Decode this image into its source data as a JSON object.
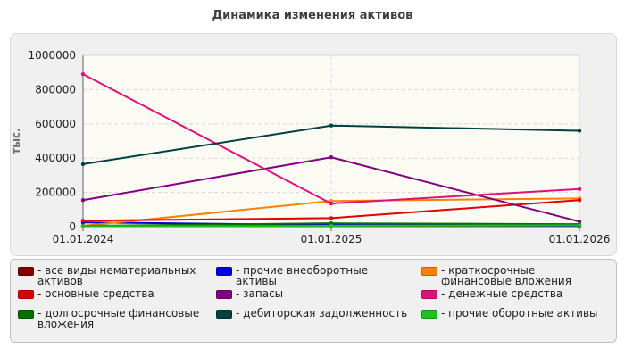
{
  "title": "Динамика изменения активов",
  "chart_data": {
    "type": "line",
    "title": "Динамика изменения активов",
    "ylabel": "тыс.",
    "xlabel": "",
    "x": [
      "01.01.2024",
      "01.01.2025",
      "01.01.2026"
    ],
    "ylim": [
      0,
      1000000
    ],
    "yticks": [
      "0",
      "200000",
      "400000",
      "600000",
      "800000",
      "1000000"
    ],
    "ytick_values": [
      0,
      200000,
      400000,
      600000,
      800000,
      1000000
    ],
    "grid": true,
    "legend_position": "bottom",
    "series": [
      {
        "name": "- все виды нематериальных активов",
        "color": "#800000",
        "values": [
          5000,
          5000,
          5000
        ]
      },
      {
        "name": "- прочие внеоборотные активы",
        "color": "#0000e0",
        "values": [
          25000,
          10000,
          5000
        ]
      },
      {
        "name": "- краткосрочные финансовые вложения",
        "color": "#ff8000",
        "values": [
          5000,
          150000,
          165000
        ]
      },
      {
        "name": "- основные средства",
        "color": "#e00000",
        "values": [
          35000,
          50000,
          155000
        ]
      },
      {
        "name": "- запасы",
        "color": "#800080",
        "values": [
          155000,
          405000,
          30000
        ]
      },
      {
        "name": "- денежные средства",
        "color": "#e0107a",
        "values": [
          890000,
          135000,
          220000
        ]
      },
      {
        "name": "- долгосрочные финансовые вложения",
        "color": "#007000",
        "values": [
          5000,
          20000,
          15000
        ]
      },
      {
        "name": "- дебиторская задолженность",
        "color": "#004040",
        "values": [
          365000,
          590000,
          560000
        ]
      },
      {
        "name": "- прочие оборотные активы",
        "color": "#20c020",
        "values": [
          3000,
          5000,
          8000
        ]
      }
    ]
  }
}
